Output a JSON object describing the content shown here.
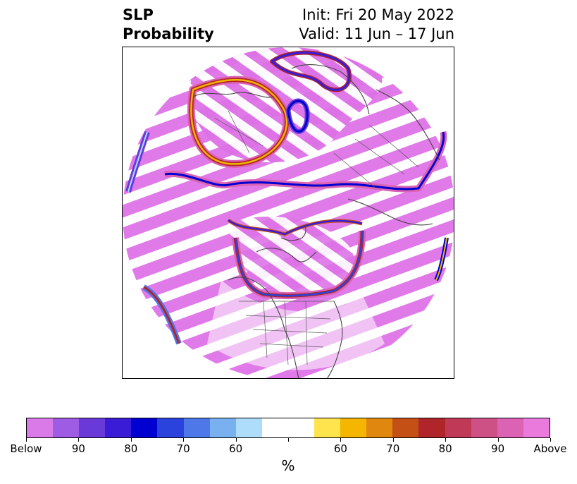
{
  "title": {
    "left_line1": "SLP",
    "left_line2": "Probability",
    "right_line1": "Init: Fri 20 May 2022",
    "right_line2": "Valid: 11 Jun – 17 Jun"
  },
  "map": {
    "projection": "north-polar-stereographic",
    "features": [
      "coastlines",
      "country-borders",
      "state-borders",
      "probability-contours"
    ]
  },
  "colorbar": {
    "colors": [
      "#d97ae8",
      "#9d5ce3",
      "#6a3ad9",
      "#3b1cd6",
      "#0000d0",
      "#2a43dd",
      "#4e78e8",
      "#78b0f0",
      "#aedcfb",
      "#ffffff",
      "#ffffff",
      "#ffe44e",
      "#f4b600",
      "#e0870f",
      "#c55016",
      "#b0252a",
      "#c03a58",
      "#ce5186",
      "#dc62b3",
      "#ea7adc"
    ],
    "tick_labels": [
      "Below",
      "90",
      "80",
      "70",
      "60",
      "",
      "60",
      "70",
      "80",
      "90",
      "Above"
    ],
    "unit_label": "%"
  }
}
